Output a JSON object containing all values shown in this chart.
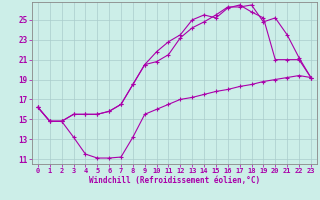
{
  "xlabel": "Windchill (Refroidissement éolien,°C)",
  "bg_color": "#cceee8",
  "line_color": "#aa00aa",
  "grid_color": "#aacccc",
  "spine_color": "#888888",
  "ylim": [
    10.5,
    26.8
  ],
  "xlim": [
    -0.5,
    23.5
  ],
  "yticks": [
    11,
    13,
    15,
    17,
    19,
    21,
    23,
    25
  ],
  "xticks": [
    0,
    1,
    2,
    3,
    4,
    5,
    6,
    7,
    8,
    9,
    10,
    11,
    12,
    13,
    14,
    15,
    16,
    17,
    18,
    19,
    20,
    21,
    22,
    23
  ],
  "curve1_x": [
    0,
    1,
    2,
    3,
    4,
    5,
    6,
    7,
    8,
    9,
    10,
    11,
    12,
    13,
    14,
    15,
    16,
    17,
    18,
    19,
    20,
    21,
    22,
    23
  ],
  "curve1_y": [
    16.2,
    14.8,
    14.8,
    13.2,
    11.5,
    11.1,
    11.1,
    11.2,
    13.2,
    15.5,
    16.0,
    16.5,
    17.0,
    17.2,
    17.5,
    17.8,
    18.0,
    18.3,
    18.5,
    18.8,
    19.0,
    19.2,
    19.4,
    19.2
  ],
  "curve2_x": [
    0,
    1,
    2,
    3,
    4,
    5,
    6,
    7,
    8,
    9,
    10,
    11,
    12,
    13,
    14,
    15,
    16,
    17,
    18,
    19,
    20,
    21,
    22,
    23
  ],
  "curve2_y": [
    16.2,
    14.8,
    14.8,
    15.5,
    15.5,
    15.5,
    15.8,
    16.5,
    18.5,
    20.5,
    20.8,
    21.5,
    23.2,
    24.2,
    24.8,
    25.5,
    26.3,
    26.3,
    26.5,
    24.8,
    25.2,
    23.5,
    21.2,
    19.2
  ],
  "curve3_x": [
    0,
    1,
    2,
    3,
    4,
    5,
    6,
    7,
    8,
    9,
    10,
    11,
    12,
    13,
    14,
    15,
    16,
    17,
    18,
    19,
    20,
    21,
    22,
    23
  ],
  "curve3_y": [
    16.2,
    14.8,
    14.8,
    15.5,
    15.5,
    15.5,
    15.8,
    16.5,
    18.5,
    20.5,
    21.8,
    22.8,
    23.5,
    25.0,
    25.5,
    25.2,
    26.2,
    26.5,
    25.8,
    25.2,
    21.0,
    21.0,
    21.0,
    19.2
  ]
}
